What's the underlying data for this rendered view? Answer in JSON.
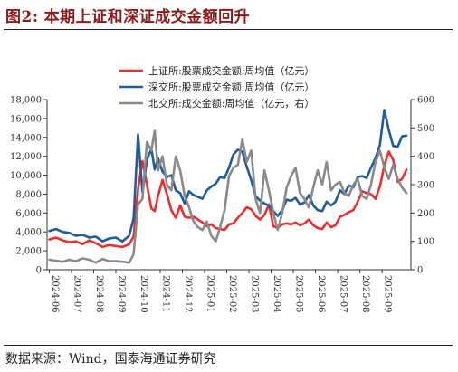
{
  "figure": {
    "label": "图2:",
    "title": "本期上证和深证成交金额回升",
    "source": "数据来源：Wind，国泰海通证券研究"
  },
  "chart_data": {
    "type": "line",
    "title": "",
    "xlabel": "",
    "ylabel_left": "",
    "ylabel_right": "",
    "ylim_left": [
      0,
      18000
    ],
    "yticks_left": [
      "0",
      "2,000",
      "4,000",
      "6,000",
      "8,000",
      "10,000",
      "12,000",
      "14,000",
      "16,000",
      "18,000"
    ],
    "ylim_right": [
      0,
      600
    ],
    "yticks_right": [
      "0",
      "100",
      "200",
      "300",
      "400",
      "500",
      "600"
    ],
    "x_tick_labels": [
      "2024-06",
      "2024-07",
      "2024-08",
      "2024-09",
      "2024-10",
      "2024-11",
      "2024-12",
      "2025-01",
      "2025-02",
      "2025-03",
      "2025-04",
      "2025-05",
      "2025-06",
      "2025-07",
      "2025-08",
      "2025-09"
    ],
    "x_range_months": [
      0,
      16.4
    ],
    "legend_position": "top-center",
    "grid": false,
    "series": [
      {
        "name": "上证所:股票成交金额:周均值（亿元）",
        "axis": "left",
        "color": "#e8302f",
        "x": [
          0.1,
          0.4,
          0.7,
          1.0,
          1.3,
          1.6,
          1.9,
          2.2,
          2.5,
          2.8,
          3.1,
          3.4,
          3.7,
          3.9,
          4.1,
          4.3,
          4.5,
          4.7,
          4.85,
          5.0,
          5.2,
          5.4,
          5.6,
          5.8,
          6.0,
          6.2,
          6.4,
          6.6,
          6.8,
          7.0,
          7.2,
          7.4,
          7.6,
          7.8,
          8.0,
          8.2,
          8.4,
          8.6,
          8.8,
          9.0,
          9.2,
          9.4,
          9.6,
          9.8,
          10.0,
          10.2,
          10.4,
          10.6,
          10.8,
          11.0,
          11.2,
          11.4,
          11.6,
          11.8,
          12.0,
          12.2,
          12.4,
          12.6,
          12.8,
          13.0,
          13.2,
          13.4,
          13.6,
          13.8,
          14.0,
          14.2,
          14.4,
          14.6,
          14.8,
          15.0,
          15.2,
          15.4,
          15.6,
          15.8,
          16.0,
          16.2
        ],
        "values": [
          3200,
          3400,
          3100,
          2900,
          3000,
          2700,
          3100,
          2800,
          2400,
          2600,
          2500,
          2400,
          2700,
          3500,
          8500,
          11500,
          9000,
          6500,
          6200,
          7800,
          9500,
          8000,
          6300,
          5500,
          6800,
          5600,
          5500,
          5600,
          5300,
          5000,
          4600,
          4800,
          4400,
          4300,
          4200,
          4800,
          4900,
          5500,
          6000,
          6600,
          6400,
          5700,
          5300,
          5800,
          6900,
          4600,
          4400,
          4800,
          4900,
          4800,
          5000,
          4700,
          4900,
          5300,
          4700,
          4400,
          4300,
          5000,
          4500,
          4700,
          5600,
          5800,
          6100,
          6300,
          7200,
          8300,
          8100,
          8000,
          7500,
          8800,
          11000,
          12500,
          11600,
          9300,
          9600,
          10600
        ]
      },
      {
        "name": "深交所:股票成交金额:周均值（亿元）",
        "axis": "left",
        "color": "#1f5c99",
        "x": [
          0.1,
          0.4,
          0.7,
          1.0,
          1.3,
          1.6,
          1.9,
          2.2,
          2.5,
          2.8,
          3.1,
          3.4,
          3.7,
          3.9,
          4.1,
          4.3,
          4.5,
          4.7,
          4.85,
          5.0,
          5.2,
          5.4,
          5.6,
          5.8,
          6.0,
          6.2,
          6.4,
          6.6,
          6.8,
          7.0,
          7.2,
          7.4,
          7.6,
          7.8,
          8.0,
          8.2,
          8.4,
          8.6,
          8.8,
          9.0,
          9.2,
          9.4,
          9.6,
          9.8,
          10.0,
          10.2,
          10.4,
          10.6,
          10.8,
          11.0,
          11.2,
          11.4,
          11.6,
          11.8,
          12.0,
          12.2,
          12.4,
          12.6,
          12.8,
          13.0,
          13.2,
          13.4,
          13.6,
          13.8,
          14.0,
          14.2,
          14.4,
          14.6,
          14.8,
          15.0,
          15.2,
          15.4,
          15.6,
          15.8,
          16.0,
          16.2
        ],
        "values": [
          4100,
          4300,
          4000,
          3900,
          3600,
          3700,
          3400,
          3500,
          3000,
          3300,
          3400,
          3000,
          3600,
          5400,
          14300,
          8200,
          11600,
          12800,
          10600,
          11800,
          10400,
          9800,
          10000,
          8400,
          8100,
          7000,
          8300,
          7900,
          7700,
          7500,
          8400,
          8800,
          9100,
          9800,
          9700,
          10800,
          12200,
          12700,
          12500,
          10900,
          9500,
          7800,
          7300,
          7000,
          6800,
          6200,
          5700,
          6300,
          7400,
          7300,
          7600,
          6900,
          7100,
          7900,
          6800,
          6300,
          6200,
          7200,
          6800,
          7200,
          8400,
          8000,
          8900,
          8700,
          9800,
          9900,
          9700,
          10800,
          11800,
          13200,
          16900,
          14800,
          13100,
          13000,
          14100,
          14200
        ]
      },
      {
        "name": "北交所:成交金额:周均值（亿元，右）",
        "axis": "right",
        "color": "#8a8a8a",
        "x": [
          0.1,
          0.4,
          0.7,
          1.0,
          1.3,
          1.6,
          1.9,
          2.2,
          2.5,
          2.8,
          3.1,
          3.4,
          3.7,
          3.9,
          4.1,
          4.3,
          4.5,
          4.7,
          4.85,
          5.0,
          5.2,
          5.4,
          5.6,
          5.8,
          6.0,
          6.2,
          6.4,
          6.6,
          6.8,
          7.0,
          7.2,
          7.4,
          7.6,
          7.8,
          8.0,
          8.2,
          8.4,
          8.6,
          8.8,
          9.0,
          9.2,
          9.4,
          9.6,
          9.8,
          10.0,
          10.2,
          10.4,
          10.6,
          10.8,
          11.0,
          11.2,
          11.4,
          11.6,
          11.8,
          12.0,
          12.2,
          12.4,
          12.6,
          12.8,
          13.0,
          13.2,
          13.4,
          13.6,
          13.8,
          14.0,
          14.2,
          14.4,
          14.6,
          14.8,
          15.0,
          15.2,
          15.4,
          15.6,
          15.8,
          16.0,
          16.2
        ],
        "values": [
          35,
          32,
          28,
          35,
          30,
          40,
          35,
          25,
          38,
          30,
          30,
          28,
          25,
          55,
          230,
          250,
          450,
          420,
          490,
          350,
          400,
          300,
          280,
          400,
          350,
          260,
          220,
          170,
          150,
          140,
          170,
          120,
          100,
          150,
          210,
          330,
          360,
          370,
          460,
          380,
          420,
          250,
          200,
          350,
          280,
          200,
          140,
          200,
          290,
          330,
          360,
          270,
          250,
          220,
          290,
          350,
          300,
          380,
          280,
          300,
          310,
          270,
          260,
          300,
          320,
          260,
          250,
          300,
          380,
          420,
          360,
          320,
          370,
          320,
          290,
          270
        ]
      }
    ]
  }
}
